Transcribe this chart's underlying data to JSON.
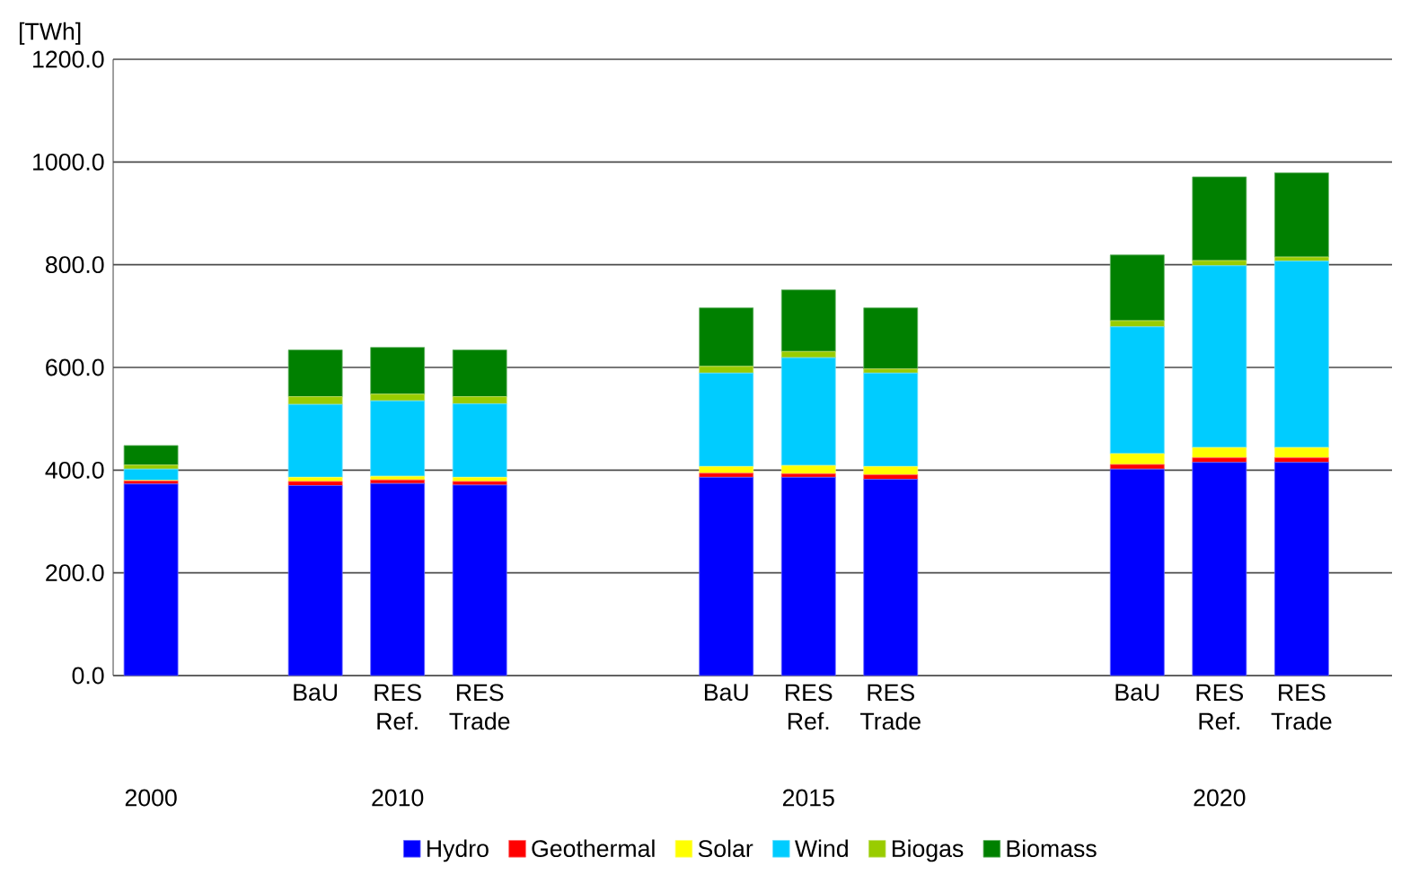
{
  "chart_data": {
    "type": "bar",
    "stacked": true,
    "ylabel": "[TWh]",
    "categories": [
      null,
      null,
      "BaU",
      "RES Ref.",
      "RES Trade",
      null,
      null,
      "BaU",
      "RES Ref.",
      "RES Trade",
      null,
      null,
      "BaU",
      "RES Ref.",
      "RES Trade"
    ],
    "series": [
      {
        "name": "Hydro",
        "color": "#0000ff",
        "values": [
          373,
          null,
          370,
          374,
          371,
          null,
          null,
          386,
          386,
          382,
          null,
          null,
          402,
          415,
          415
        ]
      },
      {
        "name": "Geothermal",
        "color": "#ff0000",
        "values": [
          6,
          null,
          8,
          7,
          7,
          null,
          null,
          8,
          7,
          9,
          null,
          null,
          9,
          9,
          9
        ]
      },
      {
        "name": "Solar",
        "color": "#ffff00",
        "values": [
          1,
          null,
          8,
          7,
          8,
          null,
          null,
          13,
          16,
          16,
          null,
          null,
          21,
          20,
          20
        ]
      },
      {
        "name": "Wind",
        "color": "#00ccff",
        "values": [
          22,
          null,
          142,
          147,
          143,
          null,
          null,
          182,
          210,
          182,
          null,
          null,
          247,
          354,
          363
        ]
      },
      {
        "name": "Biogas",
        "color": "#99cc00",
        "values": [
          8,
          null,
          15,
          13,
          14,
          null,
          null,
          13,
          12,
          8,
          null,
          null,
          12,
          10,
          8
        ]
      },
      {
        "name": "Biomass",
        "color": "#008000",
        "values": [
          38,
          null,
          91,
          91,
          91,
          null,
          null,
          114,
          120,
          119,
          null,
          null,
          128,
          163,
          164
        ]
      }
    ],
    "ylim": [
      0,
      1200
    ],
    "yticks": [
      {
        "value": 0,
        "label": "0.0"
      },
      {
        "value": 200,
        "label": "200.0"
      },
      {
        "value": 400,
        "label": "400.0"
      },
      {
        "value": 600,
        "label": "600.0"
      },
      {
        "value": 800,
        "label": "800.0"
      },
      {
        "value": 1000,
        "label": "1000.0"
      },
      {
        "value": 1200,
        "label": "1200.0"
      }
    ],
    "grid": "y",
    "legend": "bottom",
    "annotations": [
      "2000",
      "2010",
      "2015",
      "2020"
    ]
  }
}
